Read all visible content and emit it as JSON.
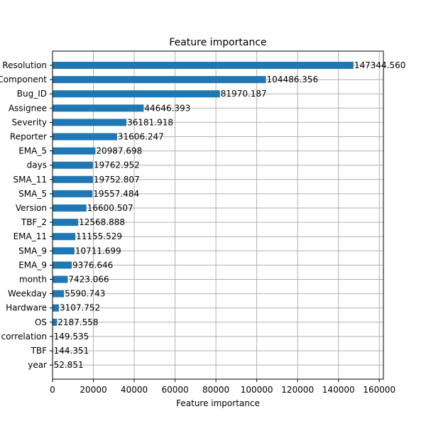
{
  "chart_data": {
    "type": "bar",
    "orientation": "horizontal",
    "title": "Feature importance",
    "xlabel": "Feature importance",
    "ylabel": "",
    "xlim": [
      0,
      162000
    ],
    "xticks": [
      0,
      20000,
      40000,
      60000,
      80000,
      100000,
      120000,
      140000,
      160000
    ],
    "grid": true,
    "bar_color": "#1f77b4",
    "categories": [
      "Resolution",
      "Component",
      "Bug_ID",
      "Assignee",
      "Severity",
      "Reporter",
      "EMA_5",
      "days",
      "SMA_11",
      "SMA_5",
      "Version",
      "TBF_2",
      "EMA_11",
      "SMA_9",
      "EMA_9",
      "month",
      "Weekday",
      "Hardware",
      "OS",
      "correlation",
      "TBF",
      "year"
    ],
    "values": [
      147344.56,
      104486.356,
      81970.187,
      44646.393,
      36181.918,
      31606.247,
      20987.698,
      19762.952,
      19752.807,
      19557.484,
      16600.507,
      12568.888,
      11155.529,
      10711.699,
      9376.646,
      7423.066,
      5590.743,
      3107.752,
      2187.558,
      149.535,
      144.351,
      52.851
    ],
    "value_labels": [
      "147344.560",
      "104486.356",
      "81970.187",
      "44646.393",
      "36181.918",
      "31606.247",
      "20987.698",
      "19762.952",
      "19752.807",
      "19557.484",
      "16600.507",
      "12568.888",
      "11155.529",
      "10711.699",
      "9376.646",
      "7423.066",
      "5590.743",
      "3107.752",
      "2187.558",
      "149.535",
      "144.351",
      "52.851"
    ]
  }
}
